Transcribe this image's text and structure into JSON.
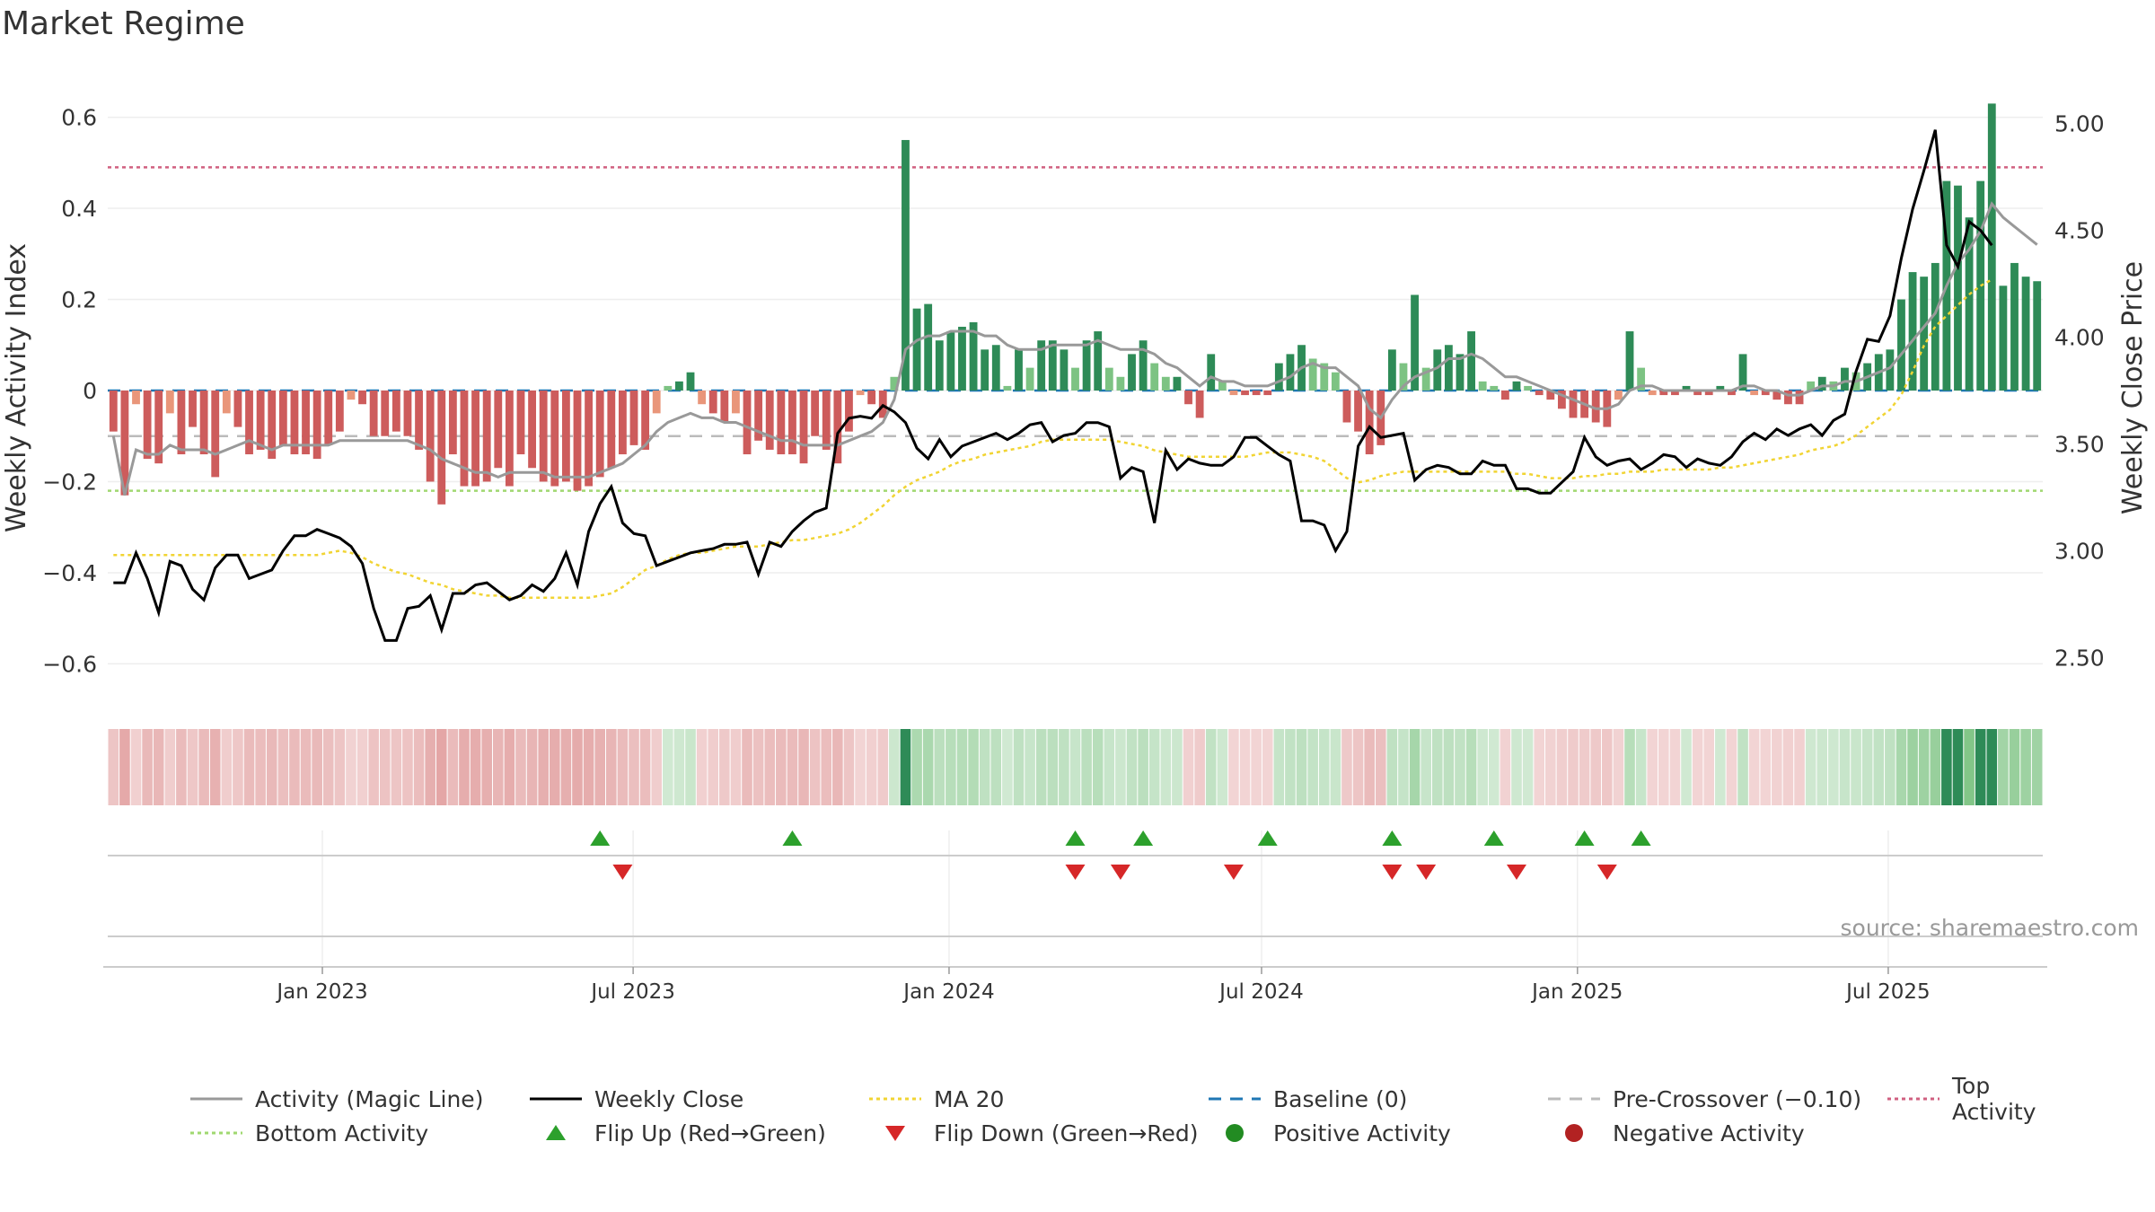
{
  "title": "Market Regime",
  "source": "source: sharemaestro.com",
  "colors": {
    "pos_strong": "#2e8b57",
    "pos_weak": "#7dc383",
    "neg_strong": "#cd5c5c",
    "neg_weak": "#e9967a",
    "magic": "#999999",
    "close": "#000000",
    "ma": "#f1d433",
    "baseline": "#1f77b4",
    "precross": "#bbbbbb",
    "top": "#d06080",
    "bottom": "#a0d870",
    "flip_up": "#2ca02c",
    "flip_down": "#d62728",
    "pos_dot": "#228b22",
    "neg_dot": "#b22222"
  },
  "chart_data": {
    "type": "bar",
    "xlabel": "",
    "ylabel": "Weekly Activity Index",
    "y2label": "Weekly Close Price",
    "ylim": [
      -0.68,
      0.68
    ],
    "y2lim": [
      2.3,
      5.2
    ],
    "yticks": [
      0.6,
      0.4,
      0.2,
      0,
      -0.2,
      -0.4,
      -0.6
    ],
    "ytick_labels": [
      "0.6",
      "0.4",
      "0.2",
      "0",
      "−0.2",
      "−0.4",
      "−0.6"
    ],
    "y2ticks": [
      5.0,
      4.5,
      4.0,
      3.5,
      3.0,
      2.5
    ],
    "y2tick_labels": [
      "5.00",
      "4.50",
      "4.00",
      "3.50",
      "3.00",
      "2.50"
    ],
    "date_range": [
      "2022-08-29",
      "2025-09-29"
    ],
    "xticks": [
      {
        "date": "2023-01-01",
        "label": "Jan 2023"
      },
      {
        "date": "2023-07-01",
        "label": "Jul 2023"
      },
      {
        "date": "2024-01-01",
        "label": "Jan 2024"
      },
      {
        "date": "2024-07-01",
        "label": "Jul 2024"
      },
      {
        "date": "2025-01-01",
        "label": "Jan 2025"
      },
      {
        "date": "2025-07-01",
        "label": "Jul 2025"
      }
    ],
    "reference_lines": {
      "top_activity": 0.49,
      "bottom_activity": -0.22,
      "pre_crossover": -0.1,
      "baseline": 0
    },
    "activity": [
      -0.09,
      -0.23,
      -0.03,
      -0.15,
      -0.16,
      -0.05,
      -0.14,
      -0.08,
      -0.14,
      -0.19,
      -0.05,
      -0.08,
      -0.14,
      -0.13,
      -0.15,
      -0.12,
      -0.14,
      -0.14,
      -0.15,
      -0.12,
      -0.09,
      -0.02,
      -0.03,
      -0.1,
      -0.1,
      -0.09,
      -0.1,
      -0.13,
      -0.2,
      -0.25,
      -0.14,
      -0.21,
      -0.21,
      -0.2,
      -0.17,
      -0.21,
      -0.14,
      -0.17,
      -0.2,
      -0.21,
      -0.2,
      -0.22,
      -0.21,
      -0.19,
      -0.17,
      -0.14,
      -0.12,
      -0.13,
      -0.05,
      0.01,
      0.02,
      0.04,
      -0.03,
      -0.05,
      -0.07,
      -0.05,
      -0.14,
      -0.11,
      -0.13,
      -0.14,
      -0.14,
      -0.16,
      -0.1,
      -0.13,
      -0.16,
      -0.09,
      -0.01,
      -0.03,
      -0.06,
      0.03,
      0.55,
      0.18,
      0.19,
      0.11,
      0.13,
      0.14,
      0.15,
      0.09,
      0.1,
      0.01,
      0.09,
      0.05,
      0.11,
      0.11,
      0.09,
      0.05,
      0.11,
      0.13,
      0.05,
      0.03,
      0.08,
      0.11,
      0.06,
      0.03,
      0.03,
      -0.03,
      -0.06,
      0.08,
      0.02,
      -0.01,
      -0.01,
      -0.01,
      -0.01,
      0.06,
      0.08,
      0.1,
      0.07,
      0.06,
      0.04,
      -0.07,
      -0.09,
      -0.14,
      -0.12,
      0.09,
      0.06,
      0.21,
      0.05,
      0.09,
      0.1,
      0.08,
      0.13,
      0.02,
      0.01,
      -0.02,
      0.02,
      0.01,
      -0.01,
      -0.02,
      -0.04,
      -0.06,
      -0.06,
      -0.07,
      -0.08,
      -0.02,
      0.13,
      0.05,
      -0.01,
      -0.01,
      -0.01,
      0.01,
      -0.01,
      -0.01,
      0.01,
      -0.01,
      0.08,
      -0.01,
      -0.01,
      -0.02,
      -0.03,
      -0.03,
      0.02,
      0.03,
      0.02,
      0.05,
      0.04,
      0.06,
      0.08,
      0.09,
      0.2,
      0.26,
      0.25,
      0.28,
      0.46,
      0.45,
      0.38,
      0.46,
      0.63,
      0.23,
      0.28,
      0.25,
      0.24
    ],
    "magic_line": [
      -0.1,
      -0.23,
      -0.13,
      -0.14,
      -0.14,
      -0.12,
      -0.13,
      -0.13,
      -0.13,
      -0.14,
      -0.13,
      -0.12,
      -0.11,
      -0.12,
      -0.13,
      -0.12,
      -0.12,
      -0.12,
      -0.12,
      -0.12,
      -0.11,
      -0.11,
      -0.11,
      -0.11,
      -0.11,
      -0.11,
      -0.11,
      -0.12,
      -0.13,
      -0.15,
      -0.16,
      -0.17,
      -0.18,
      -0.18,
      -0.19,
      -0.18,
      -0.18,
      -0.18,
      -0.18,
      -0.19,
      -0.19,
      -0.19,
      -0.19,
      -0.18,
      -0.17,
      -0.16,
      -0.14,
      -0.12,
      -0.09,
      -0.07,
      -0.06,
      -0.05,
      -0.06,
      -0.06,
      -0.07,
      -0.07,
      -0.08,
      -0.09,
      -0.1,
      -0.11,
      -0.11,
      -0.12,
      -0.12,
      -0.12,
      -0.12,
      -0.11,
      -0.1,
      -0.09,
      -0.07,
      -0.02,
      0.09,
      0.11,
      0.12,
      0.12,
      0.13,
      0.13,
      0.13,
      0.12,
      0.12,
      0.1,
      0.09,
      0.09,
      0.09,
      0.1,
      0.1,
      0.1,
      0.1,
      0.11,
      0.1,
      0.09,
      0.09,
      0.09,
      0.08,
      0.06,
      0.05,
      0.03,
      0.01,
      0.03,
      0.02,
      0.02,
      0.01,
      0.01,
      0.01,
      0.02,
      0.03,
      0.05,
      0.06,
      0.05,
      0.05,
      0.03,
      0.01,
      -0.04,
      -0.06,
      -0.02,
      0.01,
      0.03,
      0.04,
      0.05,
      0.07,
      0.07,
      0.08,
      0.07,
      0.05,
      0.03,
      0.03,
      0.02,
      0.01,
      0.0,
      -0.01,
      -0.02,
      -0.03,
      -0.04,
      -0.04,
      -0.03,
      0.0,
      0.01,
      0.01,
      0.0,
      0.0,
      0.0,
      0.0,
      0.0,
      0.0,
      0.0,
      0.01,
      0.01,
      0.0,
      0.0,
      -0.01,
      -0.01,
      0.0,
      0.01,
      0.01,
      0.02,
      0.02,
      0.03,
      0.04,
      0.05,
      0.08,
      0.11,
      0.14,
      0.17,
      0.23,
      0.28,
      0.31,
      0.35,
      0.41,
      0.38,
      0.36,
      0.34,
      0.32
    ],
    "weekly_close": [
      2.85,
      2.85,
      2.99,
      2.87,
      2.71,
      2.95,
      2.93,
      2.82,
      2.77,
      2.92,
      2.98,
      2.98,
      2.87,
      2.89,
      2.91,
      3.0,
      3.07,
      3.07,
      3.1,
      3.08,
      3.06,
      3.02,
      2.94,
      2.73,
      2.58,
      2.58,
      2.73,
      2.74,
      2.79,
      2.63,
      2.8,
      2.8,
      2.84,
      2.85,
      2.81,
      2.77,
      2.79,
      2.84,
      2.81,
      2.87,
      2.99,
      2.84,
      3.09,
      3.22,
      3.3,
      3.13,
      3.08,
      3.07,
      2.93,
      2.95,
      2.97,
      2.99,
      3.0,
      3.01,
      3.03,
      3.03,
      3.04,
      2.89,
      3.04,
      3.02,
      3.09,
      3.14,
      3.18,
      3.2,
      3.55,
      3.62,
      3.63,
      3.62,
      3.68,
      3.65,
      3.6,
      3.48,
      3.43,
      3.52,
      3.44,
      3.49,
      3.51,
      3.53,
      3.55,
      3.52,
      3.55,
      3.59,
      3.6,
      3.51,
      3.54,
      3.55,
      3.6,
      3.6,
      3.58,
      3.34,
      3.39,
      3.37,
      3.13,
      3.47,
      3.38,
      3.43,
      3.41,
      3.4,
      3.4,
      3.44,
      3.53,
      3.53,
      3.49,
      3.45,
      3.42,
      3.14,
      3.14,
      3.12,
      3.0,
      3.09,
      3.49,
      3.58,
      3.53,
      3.54,
      3.55,
      3.33,
      3.38,
      3.4,
      3.39,
      3.36,
      3.36,
      3.42,
      3.4,
      3.4,
      3.29,
      3.29,
      3.27,
      3.27,
      3.32,
      3.37,
      3.53,
      3.44,
      3.4,
      3.42,
      3.43,
      3.38,
      3.41,
      3.45,
      3.44,
      3.39,
      3.43,
      3.41,
      3.4,
      3.44,
      3.51,
      3.55,
      3.52,
      3.57,
      3.54,
      3.57,
      3.59,
      3.54,
      3.61,
      3.64,
      3.84,
      3.99,
      3.98,
      4.1,
      4.37,
      4.6,
      4.78,
      4.97,
      4.43,
      4.33,
      4.54,
      4.5,
      4.43
    ],
    "ma20": [
      2.98,
      2.98,
      2.98,
      2.98,
      2.98,
      2.98,
      2.98,
      2.98,
      2.98,
      2.98,
      2.98,
      2.98,
      2.98,
      2.98,
      2.98,
      2.98,
      2.98,
      2.98,
      2.98,
      2.99,
      3.0,
      2.99,
      2.97,
      2.94,
      2.92,
      2.9,
      2.89,
      2.87,
      2.85,
      2.84,
      2.82,
      2.81,
      2.8,
      2.79,
      2.79,
      2.78,
      2.78,
      2.78,
      2.78,
      2.78,
      2.78,
      2.78,
      2.78,
      2.79,
      2.8,
      2.83,
      2.87,
      2.91,
      2.93,
      2.96,
      2.98,
      2.99,
      2.99,
      3.0,
      3.01,
      3.02,
      3.02,
      3.02,
      3.03,
      3.04,
      3.05,
      3.05,
      3.06,
      3.07,
      3.08,
      3.1,
      3.13,
      3.17,
      3.21,
      3.26,
      3.3,
      3.33,
      3.35,
      3.37,
      3.4,
      3.42,
      3.43,
      3.45,
      3.46,
      3.47,
      3.48,
      3.49,
      3.51,
      3.52,
      3.52,
      3.52,
      3.52,
      3.52,
      3.52,
      3.51,
      3.5,
      3.49,
      3.47,
      3.46,
      3.45,
      3.44,
      3.44,
      3.44,
      3.44,
      3.44,
      3.44,
      3.45,
      3.46,
      3.46,
      3.46,
      3.45,
      3.44,
      3.42,
      3.38,
      3.34,
      3.32,
      3.33,
      3.35,
      3.36,
      3.37,
      3.37,
      3.37,
      3.37,
      3.37,
      3.37,
      3.37,
      3.37,
      3.37,
      3.37,
      3.36,
      3.36,
      3.35,
      3.34,
      3.34,
      3.34,
      3.35,
      3.35,
      3.36,
      3.36,
      3.37,
      3.37,
      3.37,
      3.38,
      3.38,
      3.38,
      3.38,
      3.38,
      3.39,
      3.39,
      3.4,
      3.41,
      3.42,
      3.43,
      3.44,
      3.45,
      3.47,
      3.48,
      3.49,
      3.51,
      3.54,
      3.58,
      3.62,
      3.66,
      3.73,
      3.84,
      3.96,
      4.05,
      4.1,
      4.15,
      4.2,
      4.24,
      4.27
    ],
    "regime_strip": "alternating red/green bands mirroring activity sign",
    "flip_up_weeks": [
      43,
      60,
      85,
      91,
      102,
      113,
      122,
      130,
      135
    ],
    "flip_down_weeks": [
      45,
      85,
      89,
      99,
      113,
      116,
      124,
      132
    ]
  },
  "legend": [
    {
      "label": "Activity (Magic Line)",
      "kind": "line",
      "color": "#999999"
    },
    {
      "label": "Weekly Close",
      "kind": "line",
      "color": "#000000"
    },
    {
      "label": "MA 20",
      "kind": "dotted",
      "color": "#f1d433"
    },
    {
      "label": "Baseline (0)",
      "kind": "dashed",
      "color": "#1f77b4"
    },
    {
      "label": "Pre-Crossover (−0.10)",
      "kind": "dashed",
      "color": "#bbbbbb"
    },
    {
      "label": "Top Activity",
      "kind": "dotted",
      "color": "#d06080"
    },
    {
      "label": "Bottom Activity",
      "kind": "dotted",
      "color": "#a0d870"
    },
    {
      "label": "Flip Up (Red→Green)",
      "kind": "tri-up",
      "color": "#2ca02c"
    },
    {
      "label": "Flip Down (Green→Red)",
      "kind": "tri-down",
      "color": "#d62728"
    },
    {
      "label": "Positive Activity",
      "kind": "dot",
      "color": "#228b22"
    },
    {
      "label": "Negative Activity",
      "kind": "dot",
      "color": "#b22222"
    }
  ]
}
